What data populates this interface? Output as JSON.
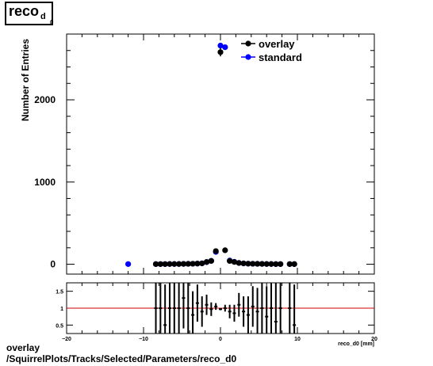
{
  "title": {
    "main": "reco",
    "sub": "d",
    "subsub": "0"
  },
  "footer": {
    "line1": "overlay",
    "line2": "/SquirrelPlots/Tracks/Selected/Parameters/reco_d0"
  },
  "xlabel": "reco_d0 [mm]",
  "colors": {
    "overlay": "#000000",
    "standard": "#0000ff",
    "ratio_line": "#cc0000"
  },
  "chart_data": [
    {
      "type": "scatter",
      "ylabel": "Number of Entries",
      "xlim": [
        -20,
        20
      ],
      "ylim": [
        -120,
        2800
      ],
      "x_ticks": [
        -20,
        -10,
        0,
        10,
        20
      ],
      "y_ticks": [
        0,
        1000,
        2000
      ],
      "legend": {
        "position": "top-right",
        "entries": [
          "overlay",
          "standard"
        ]
      },
      "series": [
        {
          "name": "overlay",
          "x": [
            -8.4,
            -7.8,
            -7.2,
            -6.6,
            -6.0,
            -5.4,
            -4.8,
            -4.2,
            -3.6,
            -3.0,
            -2.4,
            -1.8,
            -1.2,
            -0.6,
            0.0,
            0.6,
            1.2,
            1.8,
            2.4,
            3.0,
            3.6,
            4.2,
            4.8,
            5.4,
            6.0,
            6.6,
            7.2,
            7.8,
            9.0,
            9.6
          ],
          "y": [
            2,
            2,
            2,
            3,
            3,
            3,
            4,
            5,
            6,
            8,
            10,
            28,
            40,
            160,
            2580,
            170,
            40,
            28,
            15,
            10,
            7,
            6,
            5,
            4,
            3,
            3,
            2,
            2,
            2,
            2
          ],
          "yerr": [
            1,
            1,
            1,
            2,
            2,
            2,
            2,
            2,
            3,
            3,
            3,
            5,
            7,
            13,
            51,
            13,
            7,
            5,
            4,
            3,
            3,
            2,
            2,
            2,
            2,
            2,
            1,
            1,
            1,
            1
          ]
        },
        {
          "name": "standard",
          "x": [
            -12.0,
            -8.4,
            -7.8,
            -7.2,
            -6.6,
            -6.0,
            -5.4,
            -4.8,
            -4.2,
            -3.6,
            -3.0,
            -2.4,
            -1.8,
            -1.2,
            -0.6,
            0.0,
            0.6,
            1.2,
            1.8,
            2.4,
            3.0,
            3.6,
            4.2,
            4.8,
            5.4,
            6.0,
            6.6,
            7.2,
            7.8,
            9.0,
            9.6
          ],
          "y": [
            2,
            2,
            2,
            2,
            3,
            3,
            3,
            4,
            5,
            6,
            8,
            12,
            25,
            42,
            150,
            2660,
            2640,
            45,
            30,
            16,
            10,
            7,
            6,
            5,
            4,
            3,
            3,
            2,
            2,
            2,
            2
          ]
        }
      ]
    },
    {
      "type": "scatter",
      "xlim": [
        -20,
        20
      ],
      "ylim": [
        0.25,
        1.75
      ],
      "x_ticks": [
        -20,
        -10,
        0,
        10,
        20
      ],
      "y_ticks": [
        0.5,
        1,
        1.5
      ],
      "reference_line": 1,
      "series": [
        {
          "name": "overlay",
          "x": [
            -8.4,
            -7.8,
            -7.2,
            -6.6,
            -6.0,
            -5.4,
            -4.8,
            -4.2,
            -3.6,
            -3.0,
            -2.4,
            -1.8,
            -1.2,
            -0.6,
            0.0,
            0.6,
            1.2,
            1.8,
            2.4,
            3.0,
            3.6,
            4.2,
            4.8,
            5.4,
            6.0,
            6.6,
            7.2,
            7.8,
            9.0,
            9.6
          ],
          "y": [
            1.0,
            1.0,
            0.5,
            1.0,
            1.0,
            1.0,
            1.3,
            1.0,
            0.8,
            1.15,
            0.9,
            1.1,
            0.97,
            1.05,
            0.97,
            1.0,
            0.9,
            0.85,
            1.1,
            0.9,
            0.8,
            1.05,
            0.9,
            1.0,
            0.75,
            1.0,
            0.6,
            1.0,
            1.0,
            0.5
          ],
          "yerr": [
            1.2,
            1.2,
            1.2,
            1.0,
            1.0,
            1.0,
            0.9,
            0.8,
            0.7,
            0.55,
            0.45,
            0.3,
            0.2,
            0.1,
            0.03,
            0.1,
            0.2,
            0.25,
            0.35,
            0.45,
            0.55,
            0.6,
            0.7,
            0.8,
            0.9,
            1.0,
            1.2,
            1.2,
            1.2,
            1.2
          ]
        }
      ]
    }
  ]
}
